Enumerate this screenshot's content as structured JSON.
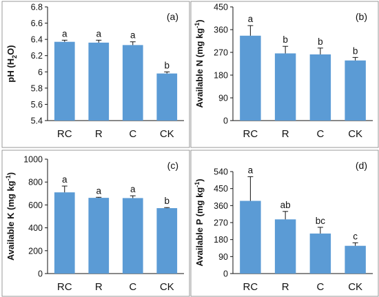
{
  "chart_data": [
    {
      "type": "bar",
      "panel_label": "(a)",
      "categories": [
        "RC",
        "R",
        "C",
        "CK"
      ],
      "values": [
        6.37,
        6.36,
        6.33,
        5.98
      ],
      "errors": [
        0.02,
        0.03,
        0.04,
        0.02
      ],
      "significance": [
        "a",
        "a",
        "a",
        "b"
      ],
      "ylabel": {
        "main": "pH (H",
        "sub": "2",
        "tail": "O)"
      },
      "ylim": [
        5.4,
        6.8
      ],
      "yticks": [
        "5.4",
        "5.6",
        "5.8",
        "6",
        "6.2",
        "6.4",
        "6.6",
        "6.8"
      ],
      "color": "#5b9bd5"
    },
    {
      "type": "bar",
      "panel_label": "(b)",
      "categories": [
        "RC",
        "R",
        "C",
        "CK"
      ],
      "values": [
        336,
        266,
        262,
        238
      ],
      "errors": [
        40,
        28,
        25,
        12
      ],
      "significance": [
        "a",
        "b",
        "b",
        "b"
      ],
      "ylabel": {
        "main": "Available N (mg kg",
        "sup": "-1",
        "tail": ")"
      },
      "ylim": [
        0,
        450
      ],
      "yticks": [
        "0",
        "90",
        "180",
        "270",
        "360",
        "450"
      ],
      "color": "#5b9bd5"
    },
    {
      "type": "bar",
      "panel_label": "(c)",
      "categories": [
        "RC",
        "R",
        "C",
        "CK"
      ],
      "values": [
        710,
        662,
        660,
        572
      ],
      "errors": [
        55,
        5,
        20,
        5
      ],
      "significance": [
        "a",
        "a",
        "a",
        "b"
      ],
      "ylabel": {
        "main": "Available K (mg kg",
        "sup": "-1",
        "tail": ")"
      },
      "ylim": [
        0,
        1000
      ],
      "yticks": [
        "0",
        "200",
        "400",
        "600",
        "800",
        "1000"
      ],
      "color": "#5b9bd5"
    },
    {
      "type": "bar",
      "panel_label": "(d)",
      "categories": [
        "RC",
        "R",
        "C",
        "CK"
      ],
      "values": [
        385,
        287,
        212,
        147
      ],
      "errors": [
        128,
        42,
        33,
        16
      ],
      "significance": [
        "a",
        "ab",
        "bc",
        "c"
      ],
      "ylabel": {
        "main": "Available P (mg kg",
        "sup": "-1",
        "tail": ")"
      },
      "ylim": [
        0,
        540
      ],
      "yticks": [
        "0",
        "90",
        "180",
        "270",
        "360",
        "450",
        "540"
      ],
      "color": "#5b9bd5"
    }
  ]
}
